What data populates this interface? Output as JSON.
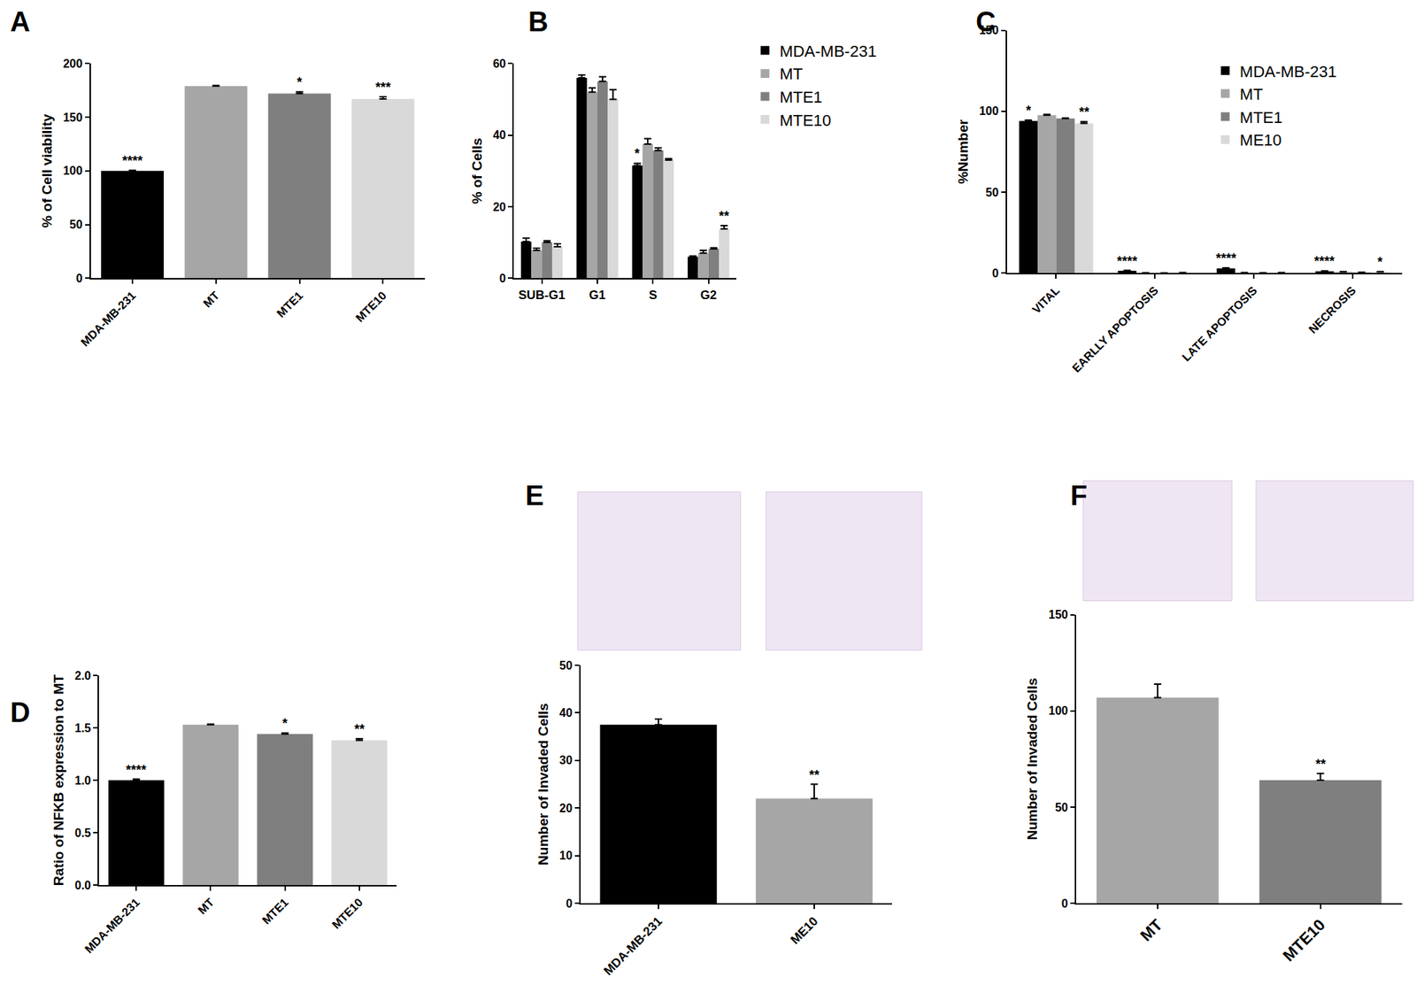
{
  "chart_data": [
    {
      "type": "bar",
      "title": "A",
      "categories": [
        "MDA-MB-231",
        "MT",
        "MTE1",
        "MTE10"
      ],
      "values": [
        100,
        179,
        172,
        167
      ],
      "errors": [
        0.5,
        0.5,
        1.5,
        2
      ],
      "significance": [
        "****",
        null,
        "*",
        "***"
      ],
      "colors": [
        "#000000",
        "#a6a6a6",
        "#7f7f7f",
        "#d9d9d9"
      ],
      "y_label": "% of Cell viability",
      "ylim": [
        0,
        200
      ],
      "yticks": [
        0,
        50,
        100,
        150,
        200
      ]
    },
    {
      "type": "bar",
      "title": "B",
      "categories": [
        "SUB-G1",
        "G1",
        "S",
        "G2"
      ],
      "series": [
        {
          "name": "MDA-MB-231",
          "color": "#000000",
          "values": [
            10.2,
            56,
            31.5,
            6
          ],
          "errors": [
            1,
            0.8,
            0.6,
            0.2
          ],
          "significance": [
            null,
            null,
            "*",
            null
          ]
        },
        {
          "name": "MT",
          "color": "#a6a6a6",
          "values": [
            7.8,
            52,
            37.5,
            7
          ],
          "errors": [
            0.6,
            1.2,
            1.5,
            0.8
          ],
          "significance": [
            null,
            null,
            null,
            null
          ]
        },
        {
          "name": "MTE1",
          "color": "#7f7f7f",
          "values": [
            10,
            55,
            35.7,
            8.2
          ],
          "errors": [
            0.5,
            1.3,
            0.7,
            0.3
          ],
          "significance": [
            null,
            null,
            null,
            null
          ]
        },
        {
          "name": "MTE10",
          "color": "#d9d9d9",
          "values": [
            8.8,
            50,
            33,
            13.8
          ],
          "errors": [
            0.8,
            2.7,
            0.4,
            0.9
          ],
          "significance": [
            null,
            null,
            null,
            "**"
          ]
        }
      ],
      "y_label": "% of Cells",
      "ylim": [
        0,
        60
      ],
      "yticks": [
        0,
        20,
        40,
        60
      ],
      "legend": "upper right"
    },
    {
      "type": "bar",
      "title": "C",
      "categories": [
        "VITAL",
        "EARLLY APOPTOSIS",
        "LATE APOPTOSIS",
        "NECROSIS"
      ],
      "series": [
        {
          "name": "MDA-MB-231",
          "color": "#000000",
          "values": [
            94,
            1.5,
            3,
            1.2
          ],
          "errors": [
            0.5,
            0.2,
            0.3,
            0.2
          ],
          "significance": [
            "*",
            "****",
            "****",
            "****"
          ]
        },
        {
          "name": "MT",
          "color": "#a6a6a6",
          "values": [
            97.5,
            0.2,
            0.3,
            0.8
          ],
          "errors": [
            0.5,
            0.1,
            0.1,
            0.1
          ],
          "significance": [
            null,
            null,
            null,
            null
          ]
        },
        {
          "name": "MTE1",
          "color": "#7f7f7f",
          "values": [
            95.5,
            0.1,
            0.2,
            0.5
          ],
          "errors": [
            0.3,
            0.1,
            0.1,
            0.1
          ],
          "significance": [
            null,
            null,
            null,
            null
          ]
        },
        {
          "name": "ME10",
          "color": "#d9d9d9",
          "values": [
            92.5,
            0.3,
            0.3,
            0.8
          ],
          "errors": [
            1,
            0.1,
            0.1,
            0.1
          ],
          "significance": [
            "**",
            null,
            null,
            "*"
          ]
        }
      ],
      "y_label": "%Number",
      "ylim": [
        0,
        150
      ],
      "yticks": [
        0,
        50,
        100,
        150
      ],
      "legend": "upper right"
    },
    {
      "type": "bar",
      "title": "D",
      "categories": [
        "MDA-MB-231",
        "MT",
        "MTE1",
        "MTE10"
      ],
      "values": [
        1.0,
        1.53,
        1.44,
        1.38
      ],
      "errors": [
        0.01,
        0.005,
        0.01,
        0.015
      ],
      "significance": [
        "****",
        null,
        "*",
        "**"
      ],
      "colors": [
        "#000000",
        "#a6a6a6",
        "#7f7f7f",
        "#d9d9d9"
      ],
      "y_label": "Ratio of NFKB expression to MT",
      "ylim": [
        0,
        2.0
      ],
      "yticks": [
        {
          "value": 0,
          "label": "0.0"
        },
        {
          "value": 0.5,
          "label": "0.5"
        },
        {
          "value": 1.0,
          "label": "1.0"
        },
        {
          "value": 1.5,
          "label": "1.5"
        },
        {
          "value": 2.0,
          "label": "2.0"
        }
      ]
    },
    {
      "type": "bar",
      "title": "E",
      "categories": [
        "MDA-MB-231",
        "ME10"
      ],
      "values": [
        37.5,
        22
      ],
      "errors": [
        1.2,
        3
      ],
      "significance": [
        null,
        "**"
      ],
      "colors": [
        "#000000",
        "#a6a6a6"
      ],
      "y_label": "Number of Invaded Cells",
      "ylim": [
        0,
        50
      ],
      "yticks": [
        0,
        10,
        20,
        30,
        40,
        50
      ]
    },
    {
      "type": "bar",
      "title": "F",
      "categories": [
        "MT",
        "MTE10"
      ],
      "values": [
        107,
        64
      ],
      "errors": [
        7,
        3.5
      ],
      "significance": [
        null,
        "**"
      ],
      "colors": [
        "#a6a6a6",
        "#7f7f7f"
      ],
      "y_label": "Number of Invaded Cells",
      "ylim": [
        0,
        150
      ],
      "yticks": [
        0,
        50,
        100,
        150
      ]
    }
  ]
}
